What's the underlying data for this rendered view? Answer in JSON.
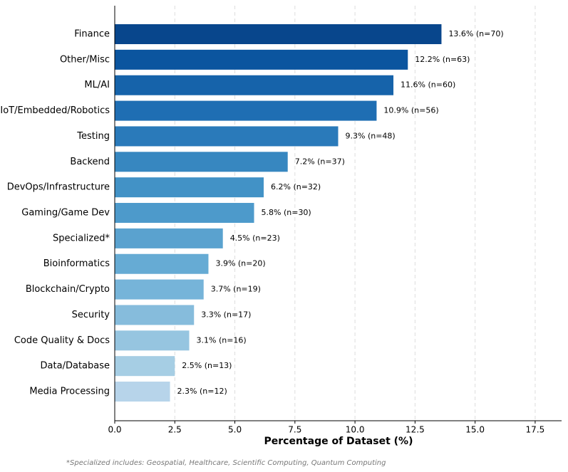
{
  "chart_data": {
    "type": "barh",
    "categories": [
      "Finance",
      "Other/Misc",
      "ML/AI",
      "IoT/Embedded/Robotics",
      "Testing",
      "Backend",
      "DevOps/Infrastructure",
      "Gaming/Game Dev",
      "Specialized*",
      "Bioinformatics",
      "Blockchain/Crypto",
      "Security",
      "Code Quality & Docs",
      "Data/Database",
      "Media Processing"
    ],
    "values": [
      13.6,
      12.2,
      11.6,
      10.9,
      9.3,
      7.2,
      6.2,
      5.8,
      4.5,
      3.9,
      3.7,
      3.3,
      3.1,
      2.5,
      2.3
    ],
    "value_labels": [
      "13.6% (n=70)",
      "12.2% (n=63)",
      "11.6% (n=60)",
      "10.9% (n=56)",
      "9.3% (n=48)",
      "7.2% (n=37)",
      "6.2% (n=32)",
      "5.8% (n=30)",
      "4.5% (n=23)",
      "3.9% (n=20)",
      "3.7% (n=19)",
      "3.3% (n=17)",
      "3.1% (n=16)",
      "2.5% (n=13)",
      "2.3% (n=12)"
    ],
    "colors": [
      "#08468c",
      "#0b559f",
      "#1663aa",
      "#1f6eb3",
      "#2a7aba",
      "#3787c0",
      "#4292c6",
      "#4d9acb",
      "#5aa2cf",
      "#66abd4",
      "#76b4d9",
      "#86bcdc",
      "#96c5e0",
      "#a6cee4",
      "#b7d4ea"
    ],
    "xlabel": "Percentage of Dataset (%)",
    "xlim": [
      0,
      18.6
    ],
    "xticks": [
      {
        "value": 0,
        "label": "0.0"
      },
      2.5,
      {
        "value": 5,
        "label": "5.0"
      },
      7.5,
      {
        "value": 10,
        "label": "10.0"
      },
      12.5,
      {
        "value": 15,
        "label": "15.0"
      },
      17.5
    ],
    "grid": true,
    "footnote": "*Specialized includes: Geospatial, Healthcare, Scientific Computing, Quantum Computing"
  }
}
